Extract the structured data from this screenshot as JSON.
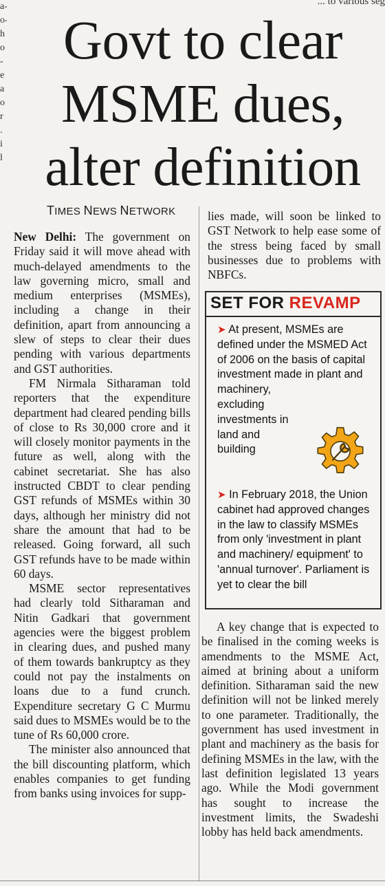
{
  "fragments": {
    "left_edge": [
      "a-",
      "o-",
      "h",
      "o",
      "",
      "-",
      "e",
      "a",
      "o",
      "r",
      ".",
      "",
      "i",
      "l"
    ],
    "top_right": "... to various seg"
  },
  "headline": [
    "Govt to clear",
    "MSME dues,",
    "alter definition"
  ],
  "byline": {
    "prefix_cap": "T",
    "rest": "IMES ",
    "cap2": "N",
    "rest2": "EWS ",
    "cap3": "N",
    "rest3": "ETWORK"
  },
  "article": {
    "dateline": "New Delhi:",
    "p1": "The government on Friday said it will move ahead with much-delayed amendments to the law governing micro, small and medium enterprises (MSMEs), including a change in their definition, apart from announcing a slew of steps to clear their dues pending with various departments and GST authorities.",
    "p2": "FM Nirmala Sitharaman told reporters that the expenditure department had cleared pending bills of close to Rs 30,000 crore and it will closely monitor payments in the future as well, along with the cabinet secretariat. She has also instructed CBDT to clear pending GST refunds of MSMEs within 30 days, although her ministry did not share the amount that had to be released. Going forward, all such GST refunds have to be made within 60 days.",
    "p3": "MSME sector representatives had clearly told Sitharaman and Nitin Gadkari that government agencies were the biggest problem in clearing dues, and pushed many of them towards bankruptcy as they could not pay the instalments on loans due to a fund crunch. Expenditure secretary G C Murmu said dues to MSMEs would be to the tune of Rs 60,000 crore.",
    "p4": "The minister also announced that the bill discounting platform, which enables companies to get funding from banks using invoices for supp-",
    "p5": "lies made, will soon be linked to GST Network to help ease some of the stress being faced by small businesses due to problems with NBFCs.",
    "p6": "A key change that is expected to be finalised in the coming weeks is amendments to the MSME Act, aimed at brining about a uniform definition. Sitharaman said the new definition will not be linked merely to one parameter. Traditionally, the government has used investment in plant and machinery as the basis for defining MSMEs in the law, with the last definition legislated 13 years ago. While the Modi government has sought to increase the investment limits, the Swadeshi lobby has held back amendments."
  },
  "sidebar": {
    "title_part1": "SET FOR ",
    "title_part2": "REVAMP",
    "bullet1_lead": "At present, MSMEs are defined under the MSMED Act of 2006 on the basis of capital investment made in plant and machinery,",
    "bullet1_tail": "excluding investments in land and building",
    "bullet2_lead": "In February",
    "bullet2_rest": "2018, the Union cabinet had approved changes in the law to classify MSMEs from only 'investment in plant and machinery/ equipment' to 'annual turnover'. Parliament is yet to clear the bill",
    "icon": "gear-wrench-icon",
    "colors": {
      "accent": "#d8261d",
      "gear": "#f2a516"
    }
  }
}
